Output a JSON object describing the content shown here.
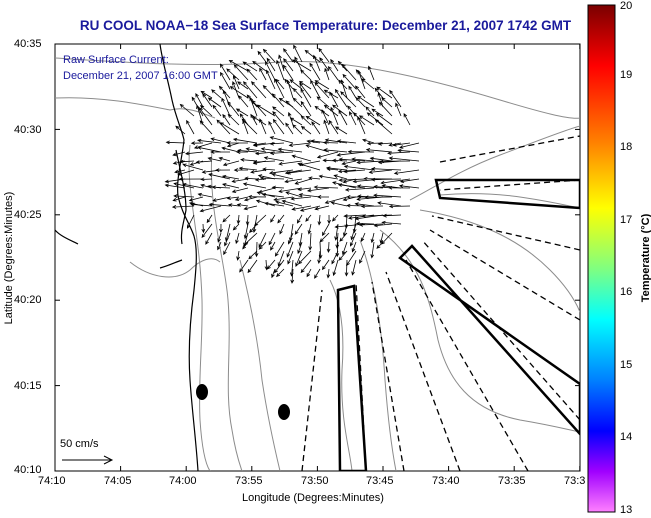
{
  "title": "RU COOL  NOAA−18  Sea Surface Temperature:  December 21, 2007 1742 GMT",
  "annotation": {
    "line1": "Raw Surface Current:",
    "line2": "December 21, 2007 16:00 GMT"
  },
  "scale_label": "50 cm/s",
  "axes": {
    "xlabel": "Longitude (Degrees:Minutes)",
    "ylabel": "Latitude (Degrees:Minutes)",
    "x_ticks": [
      "74:10",
      "74:05",
      "74:00",
      "73:55",
      "73:50",
      "73:45",
      "73:40",
      "73:35",
      "73:3"
    ],
    "y_ticks": [
      "40:35",
      "40:30",
      "40:25",
      "40:20",
      "40:15",
      "40:10"
    ]
  },
  "colorbar": {
    "label": "Temperature (°C)",
    "ticks": [
      "20",
      "19",
      "18",
      "17",
      "16",
      "15",
      "14",
      "13"
    ],
    "range": [
      13,
      20
    ]
  },
  "colors": {
    "title": "#1a1a9c",
    "coast": "#000000",
    "bathymetry": "#8c8c8c",
    "vectors": "#000000"
  }
}
